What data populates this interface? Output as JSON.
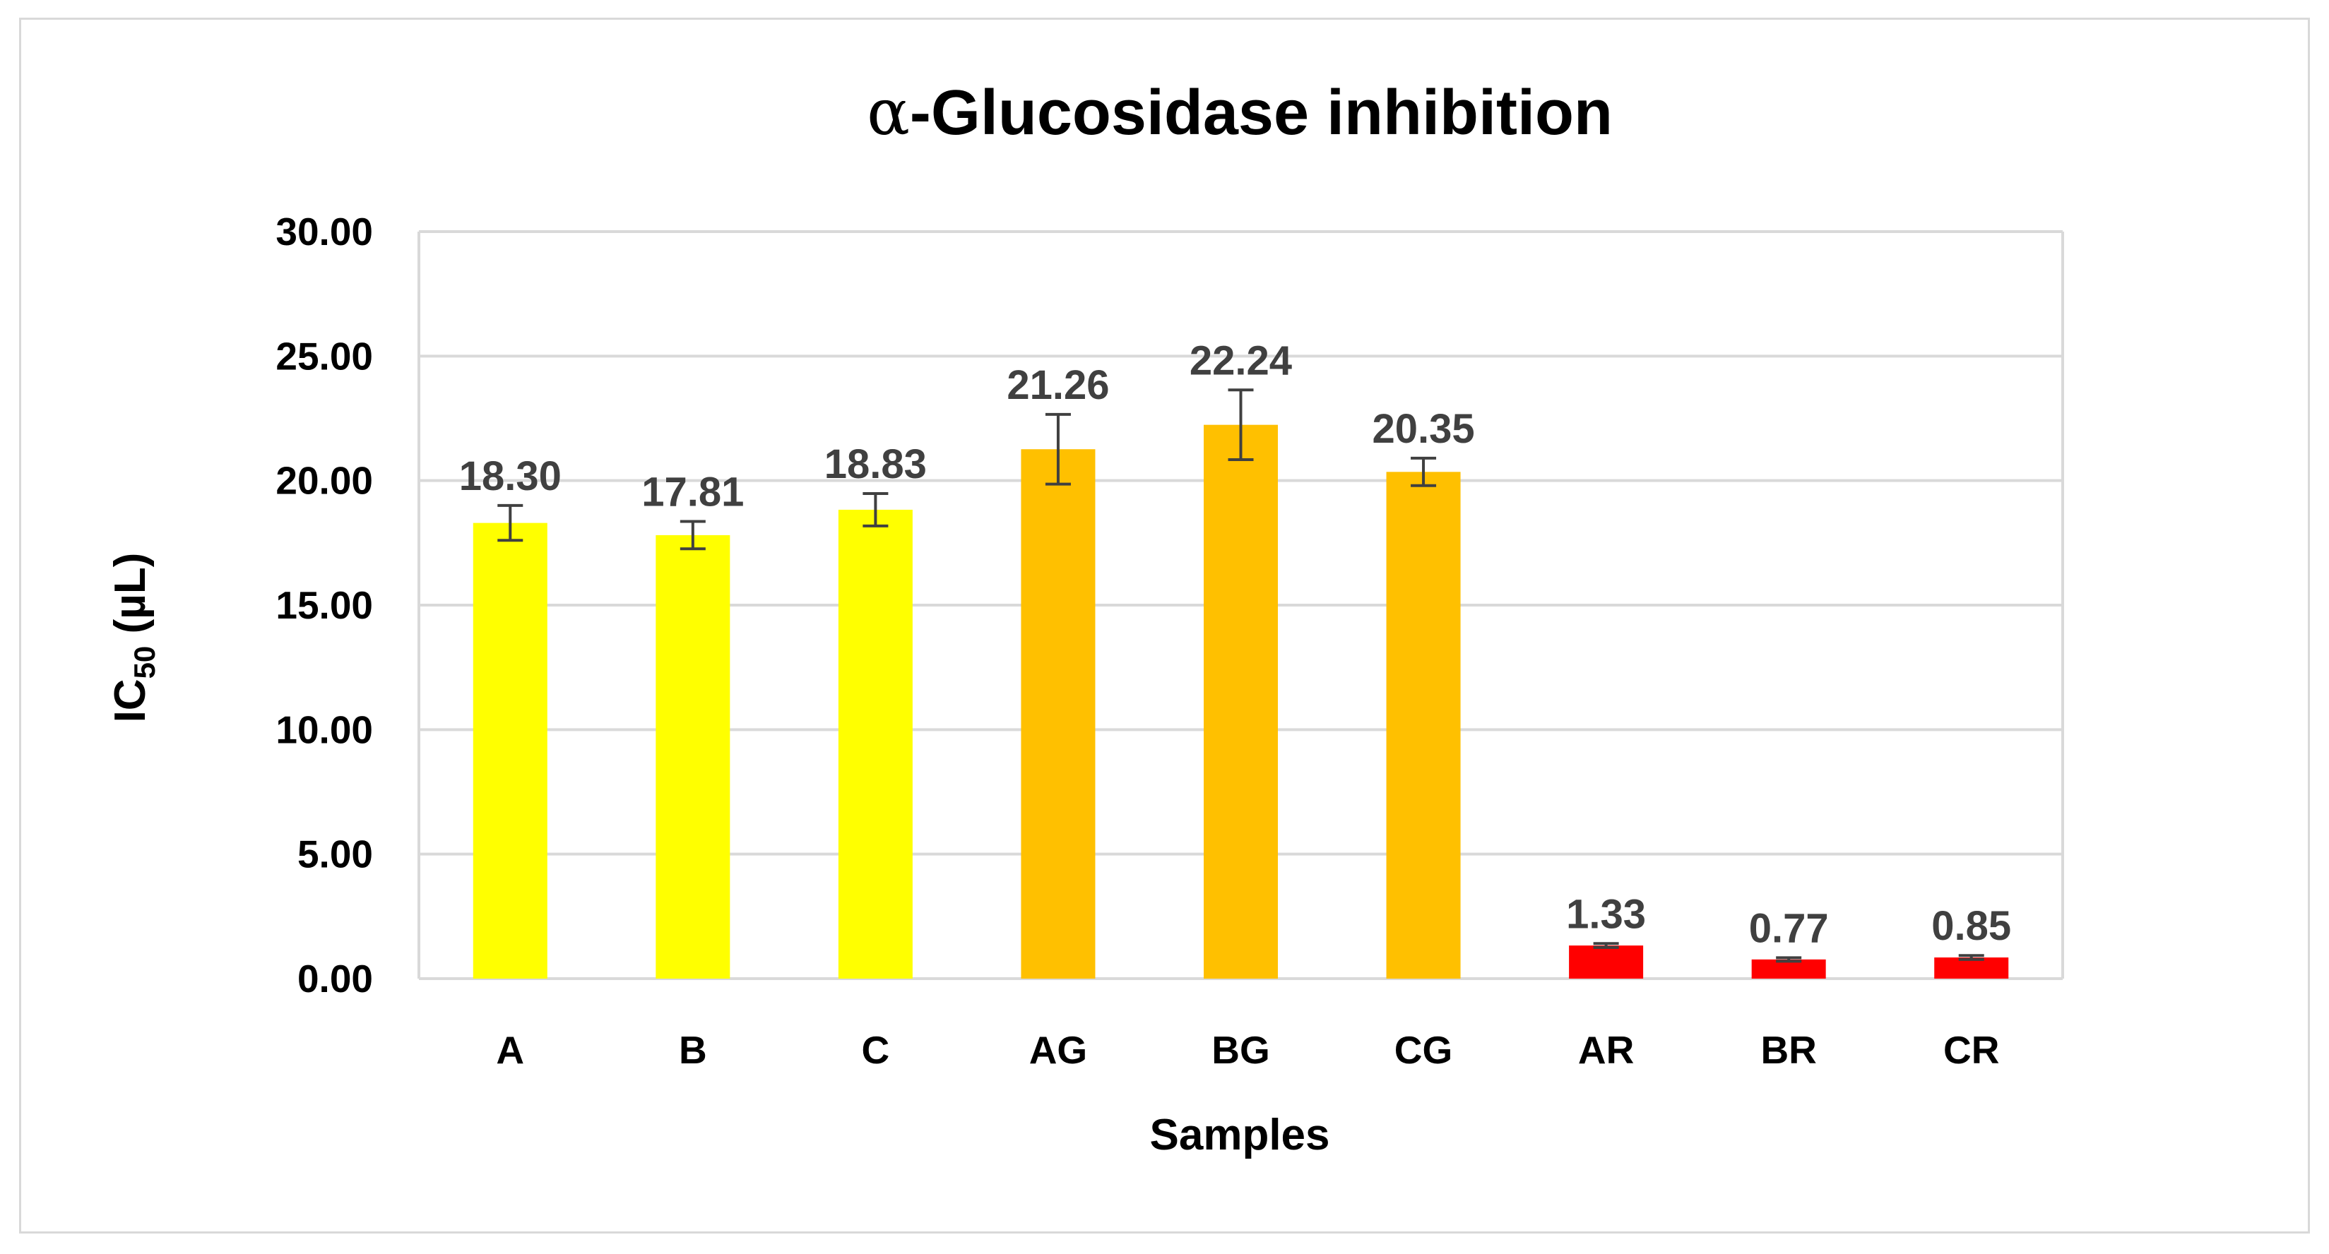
{
  "chart_data": {
    "type": "bar",
    "title": "α-Glucosidase inhibition",
    "title_prefix": "α",
    "title_rest": "-Glucosidase inhibition",
    "xlabel": "Samples",
    "ylabel": "IC50 (µL)",
    "ylabel_main": "IC",
    "ylabel_sub": "50",
    "ylabel_unit": " (µL)",
    "ylim": [
      0,
      30
    ],
    "ytick_step": 5,
    "yticks": [
      "0.00",
      "5.00",
      "10.00",
      "15.00",
      "20.00",
      "25.00",
      "30.00"
    ],
    "grid": true,
    "categories": [
      "A",
      "B",
      "C",
      "AG",
      "BG",
      "CG",
      "AR",
      "BR",
      "CR"
    ],
    "values": [
      18.3,
      17.81,
      18.83,
      21.26,
      22.24,
      20.35,
      1.33,
      0.77,
      0.85
    ],
    "value_labels": [
      "18.30",
      "17.81",
      "18.83",
      "21.26",
      "22.24",
      "20.35",
      "1.33",
      "0.77",
      "0.85"
    ],
    "errors": [
      0.7,
      0.55,
      0.65,
      1.4,
      1.4,
      0.55,
      0.08,
      0.07,
      0.08
    ],
    "bar_colors": [
      "#ffff00",
      "#ffff00",
      "#ffff00",
      "#ffc000",
      "#ffc000",
      "#ffc000",
      "#ff0000",
      "#ff0000",
      "#ff0000"
    ],
    "gridline_color": "#d9d9d9",
    "errorbar_color": "#404040"
  }
}
